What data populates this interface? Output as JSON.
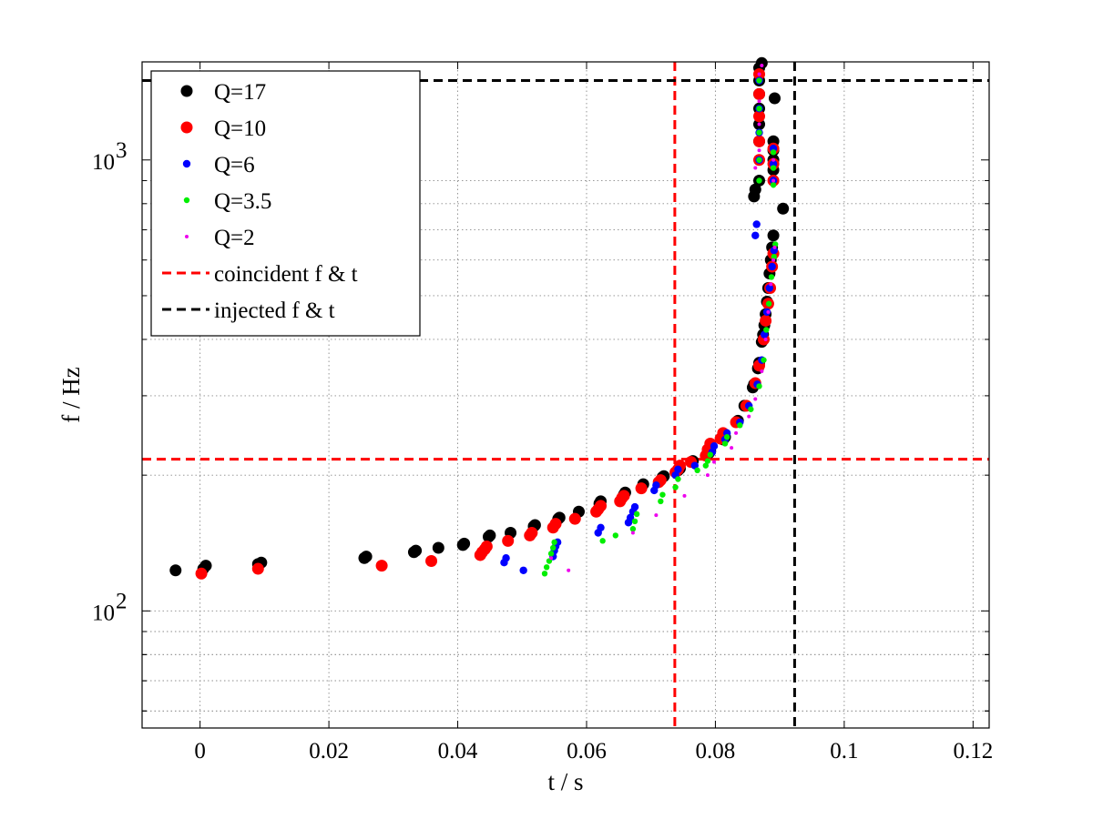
{
  "chart_data": {
    "type": "scatter",
    "title": "",
    "xlabel": "t / s",
    "ylabel": "f / Hz",
    "xlim": [
      -0.009,
      0.1225
    ],
    "ylim": [
      55,
      1650
    ],
    "yscale": "log",
    "grid": true,
    "legend_position": "top-left",
    "x_ticks": [
      0,
      0.02,
      0.04,
      0.06,
      0.08,
      0.1,
      0.12
    ],
    "x_tick_labels": [
      "0",
      "0.02",
      "0.04",
      "0.06",
      "0.08",
      "0.1",
      "0.12"
    ],
    "y_major_ticks": [
      100,
      1000
    ],
    "y_tick_labels": [
      {
        "base": "10",
        "exp": "2"
      },
      {
        "base": "10",
        "exp": "3"
      }
    ],
    "series": [
      {
        "name": "Q=17",
        "color": "#000000",
        "marker": "large-dot",
        "points": [
          [
            -0.0038,
            123
          ],
          [
            0.0005,
            124
          ],
          [
            0.0009,
            126
          ],
          [
            0.009,
            127
          ],
          [
            0.0095,
            128
          ],
          [
            0.0255,
            131
          ],
          [
            0.0258,
            132
          ],
          [
            0.0332,
            135
          ],
          [
            0.0335,
            136
          ],
          [
            0.037,
            138
          ],
          [
            0.0408,
            140
          ],
          [
            0.041,
            141
          ],
          [
            0.0448,
            146
          ],
          [
            0.045,
            147
          ],
          [
            0.0482,
            149
          ],
          [
            0.0518,
            154
          ],
          [
            0.052,
            155
          ],
          [
            0.0556,
            160
          ],
          [
            0.0558,
            161
          ],
          [
            0.0588,
            166
          ],
          [
            0.062,
            173
          ],
          [
            0.0622,
            175
          ],
          [
            0.0658,
            181
          ],
          [
            0.066,
            183
          ],
          [
            0.0688,
            191
          ],
          [
            0.0718,
            198
          ],
          [
            0.072,
            199
          ],
          [
            0.0742,
            205
          ],
          [
            0.0745,
            207
          ],
          [
            0.0765,
            215
          ],
          [
            0.079,
            224
          ],
          [
            0.0792,
            226
          ],
          [
            0.0812,
            240
          ],
          [
            0.0815,
            243
          ],
          [
            0.0835,
            264
          ],
          [
            0.0845,
            285
          ],
          [
            0.0858,
            313
          ],
          [
            0.086,
            318
          ],
          [
            0.0866,
            345
          ],
          [
            0.0868,
            355
          ],
          [
            0.0872,
            395
          ],
          [
            0.0874,
            410
          ],
          [
            0.0876,
            430
          ],
          [
            0.0878,
            455
          ],
          [
            0.088,
            485
          ],
          [
            0.0882,
            520
          ],
          [
            0.0884,
            560
          ],
          [
            0.0886,
            600
          ],
          [
            0.0888,
            640
          ],
          [
            0.089,
            680
          ],
          [
            0.086,
            830
          ],
          [
            0.0862,
            860
          ],
          [
            0.0868,
            900
          ],
          [
            0.0905,
            780
          ],
          [
            0.0892,
            1370
          ],
          [
            0.0868,
            1100
          ],
          [
            0.0868,
            1200
          ],
          [
            0.0868,
            1300
          ],
          [
            0.0868,
            1400
          ],
          [
            0.0868,
            1500
          ],
          [
            0.0868,
            1600
          ],
          [
            0.089,
            950
          ],
          [
            0.089,
            1000
          ],
          [
            0.089,
            1050
          ],
          [
            0.089,
            1100
          ],
          [
            0.0872,
            1640
          ]
        ]
      },
      {
        "name": "Q=10",
        "color": "#ff0000",
        "marker": "large-dot",
        "points": [
          [
            0.0002,
            121
          ],
          [
            0.009,
            124
          ],
          [
            0.0282,
            126
          ],
          [
            0.0359,
            129
          ],
          [
            0.0435,
            133
          ],
          [
            0.0438,
            135
          ],
          [
            0.0442,
            137
          ],
          [
            0.0445,
            139
          ],
          [
            0.0478,
            143
          ],
          [
            0.0512,
            147
          ],
          [
            0.0515,
            149
          ],
          [
            0.0548,
            153
          ],
          [
            0.0552,
            156
          ],
          [
            0.0582,
            160
          ],
          [
            0.0615,
            166
          ],
          [
            0.0618,
            168
          ],
          [
            0.0622,
            171
          ],
          [
            0.0652,
            175
          ],
          [
            0.0655,
            178
          ],
          [
            0.0658,
            180
          ],
          [
            0.0685,
            187
          ],
          [
            0.0712,
            193
          ],
          [
            0.0715,
            195
          ],
          [
            0.0738,
            203
          ],
          [
            0.0742,
            206
          ],
          [
            0.0745,
            210
          ],
          [
            0.0762,
            214
          ],
          [
            0.0785,
            221
          ],
          [
            0.0788,
            228
          ],
          [
            0.0792,
            235
          ],
          [
            0.0808,
            241
          ],
          [
            0.0812,
            248
          ],
          [
            0.0832,
            262
          ],
          [
            0.0848,
            285
          ],
          [
            0.0862,
            320
          ],
          [
            0.0868,
            350
          ],
          [
            0.0875,
            400
          ],
          [
            0.0878,
            440
          ],
          [
            0.0882,
            480
          ],
          [
            0.0885,
            520
          ],
          [
            0.0888,
            580
          ],
          [
            0.089,
            620
          ],
          [
            0.0868,
            1000
          ],
          [
            0.0868,
            1100
          ],
          [
            0.0868,
            1250
          ],
          [
            0.0868,
            1400
          ],
          [
            0.0868,
            1550
          ],
          [
            0.089,
            900
          ],
          [
            0.089,
            980
          ],
          [
            0.089,
            1060
          ]
        ]
      },
      {
        "name": "Q=6",
        "color": "#0000ff",
        "marker": "dot",
        "points": [
          [
            0.0472,
            128
          ],
          [
            0.0475,
            131
          ],
          [
            0.0502,
            123
          ],
          [
            0.0548,
            132
          ],
          [
            0.055,
            136
          ],
          [
            0.0552,
            139
          ],
          [
            0.0555,
            142
          ],
          [
            0.0618,
            149
          ],
          [
            0.0622,
            153
          ],
          [
            0.0665,
            157
          ],
          [
            0.0668,
            161
          ],
          [
            0.0672,
            166
          ],
          [
            0.0675,
            170
          ],
          [
            0.0705,
            185
          ],
          [
            0.0708,
            190
          ],
          [
            0.0738,
            200
          ],
          [
            0.0742,
            206
          ],
          [
            0.0768,
            210
          ],
          [
            0.0795,
            225
          ],
          [
            0.0798,
            232
          ],
          [
            0.0815,
            240
          ],
          [
            0.0818,
            248
          ],
          [
            0.0838,
            262
          ],
          [
            0.0852,
            285
          ],
          [
            0.0865,
            318
          ],
          [
            0.0872,
            360
          ],
          [
            0.0876,
            410
          ],
          [
            0.088,
            460
          ],
          [
            0.0884,
            520
          ],
          [
            0.0888,
            580
          ],
          [
            0.0891,
            630
          ],
          [
            0.0862,
            680
          ],
          [
            0.0864,
            720
          ],
          [
            0.0868,
            1000
          ],
          [
            0.0868,
            1150
          ],
          [
            0.0868,
            1300
          ],
          [
            0.0868,
            1500
          ],
          [
            0.089,
            900
          ],
          [
            0.089,
            980
          ],
          [
            0.089,
            1060
          ]
        ]
      },
      {
        "name": "Q=3.5",
        "color": "#00ee00",
        "marker": "small-dot",
        "points": [
          [
            0.0535,
            121
          ],
          [
            0.0538,
            125
          ],
          [
            0.0542,
            129
          ],
          [
            0.0545,
            134
          ],
          [
            0.0548,
            138
          ],
          [
            0.055,
            142
          ],
          [
            0.0625,
            143
          ],
          [
            0.0645,
            147
          ],
          [
            0.0672,
            152
          ],
          [
            0.0675,
            158
          ],
          [
            0.0678,
            164
          ],
          [
            0.0715,
            175
          ],
          [
            0.0718,
            181
          ],
          [
            0.0738,
            188
          ],
          [
            0.0742,
            196
          ],
          [
            0.0772,
            205
          ],
          [
            0.0785,
            210
          ],
          [
            0.0788,
            215
          ],
          [
            0.0792,
            222
          ],
          [
            0.0815,
            235
          ],
          [
            0.0818,
            243
          ],
          [
            0.0838,
            258
          ],
          [
            0.0855,
            280
          ],
          [
            0.0868,
            315
          ],
          [
            0.0875,
            360
          ],
          [
            0.0879,
            420
          ],
          [
            0.0883,
            480
          ],
          [
            0.0887,
            550
          ],
          [
            0.0891,
            610
          ],
          [
            0.0893,
            650
          ],
          [
            0.0868,
            900
          ],
          [
            0.0868,
            1000
          ],
          [
            0.0868,
            1150
          ],
          [
            0.0868,
            1300
          ],
          [
            0.0868,
            1500
          ],
          [
            0.089,
            880
          ],
          [
            0.089,
            960
          ],
          [
            0.089,
            1040
          ]
        ]
      },
      {
        "name": "Q=2",
        "color": "#ee00ee",
        "marker": "tiny-dot",
        "points": [
          [
            0.0572,
            123
          ],
          [
            0.0545,
            131
          ],
          [
            0.0672,
            149
          ],
          [
            0.0708,
            163
          ],
          [
            0.0752,
            180
          ],
          [
            0.0788,
            200
          ],
          [
            0.0798,
            214
          ],
          [
            0.0825,
            230
          ],
          [
            0.0832,
            248
          ],
          [
            0.0852,
            270
          ],
          [
            0.0862,
            295
          ],
          [
            0.0872,
            340
          ],
          [
            0.0878,
            400
          ],
          [
            0.0882,
            460
          ],
          [
            0.0886,
            530
          ],
          [
            0.089,
            600
          ],
          [
            0.0892,
            640
          ],
          [
            0.0862,
            960
          ],
          [
            0.0868,
            1050
          ],
          [
            0.0868,
            1200
          ],
          [
            0.0868,
            1350
          ],
          [
            0.0868,
            1550
          ],
          [
            0.0872,
            1620
          ],
          [
            0.089,
            900
          ],
          [
            0.089,
            1000
          ]
        ]
      }
    ],
    "reference_lines": [
      {
        "name": "coincident f & t",
        "color": "#ff0000",
        "t": 0.0737,
        "f": 217
      },
      {
        "name": "injected f & t",
        "color": "#000000",
        "t": 0.0923,
        "f": 1500
      }
    ]
  }
}
